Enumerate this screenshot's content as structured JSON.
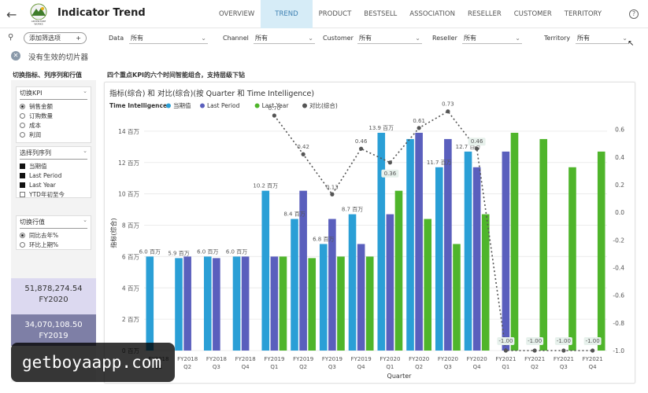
{
  "app": {
    "title": "Indicator Trend",
    "back": "←"
  },
  "nav": [
    {
      "label": "OVERVIEW",
      "active": false
    },
    {
      "label": "TREND",
      "active": true
    },
    {
      "label": "PRODUCT",
      "active": false
    },
    {
      "label": "BESTSELL",
      "active": false
    },
    {
      "label": "ASSOCIATION",
      "active": false
    },
    {
      "label": "RESELLER",
      "active": false
    },
    {
      "label": "CUSTOMER",
      "active": false
    },
    {
      "label": "TERRITORY",
      "active": false
    }
  ],
  "help": "?",
  "filters": {
    "add_label": "添加筛选项",
    "add_plus": "+",
    "items": [
      {
        "label": "Data",
        "value": "所有"
      },
      {
        "label": "Channel",
        "value": "所有"
      },
      {
        "label": "Customer",
        "value": "所有"
      },
      {
        "label": "Reseller",
        "value": "所有"
      },
      {
        "label": "Territory",
        "value": "所有"
      }
    ]
  },
  "slicer_status": "没有生效的切片器",
  "left": {
    "title": "切换指标、列序列和行值",
    "kpi_box": {
      "title": "切换KPI",
      "options": [
        "销售金额",
        "订购数量",
        "成本",
        "利润"
      ],
      "selected": 0
    },
    "series_box": {
      "title": "选择列序列",
      "options": [
        {
          "label": "当期值",
          "checked": true
        },
        {
          "label": "Last Period",
          "checked": true
        },
        {
          "label": "Last Year",
          "checked": true
        },
        {
          "label": "YTD年初至今",
          "checked": false
        }
      ]
    },
    "row_box": {
      "title": "切换行值",
      "options": [
        "同比去年%",
        "环比上期%"
      ],
      "selected": 0
    },
    "cards": [
      {
        "value": "51,878,274.54",
        "label": "FY2020"
      },
      {
        "value": "34,070,108.50",
        "label": "FY2019"
      }
    ]
  },
  "chart_heading": "四个重点KPI的六个时间智能组合，支持层级下钻",
  "chart_data": {
    "type": "bar",
    "title": "指标(综合) 和 对比(综合)(按 Quarter 和 Time Intelligence)",
    "legend_title": "Time Intelligence",
    "legend_position": "top-left",
    "xlabel": "Quarter",
    "ylabel": "指标(综合)",
    "ylim": [
      0,
      15
    ],
    "y_ticks": [
      0,
      2,
      4,
      6,
      8,
      10,
      12,
      14
    ],
    "y_tick_labels": [
      "0 百万",
      "2 百万",
      "4 百万",
      "6 百万",
      "8 百万",
      "10 百万",
      "12 百万",
      "14 百万"
    ],
    "y2lim": [
      -1.0,
      0.7
    ],
    "y2_ticks": [
      -1.0,
      -0.8,
      -0.6,
      -0.4,
      -0.2,
      0.0,
      0.2,
      0.4,
      0.6
    ],
    "y2_tick_labels": [
      "-1.0",
      "-0.8",
      "-0.6",
      "-0.4",
      "-0.2",
      "0.0",
      "0.2",
      "0.4",
      "0.6"
    ],
    "categories": [
      "FY2018 Q1",
      "FY2018 Q2",
      "FY2018 Q3",
      "FY2018 Q4",
      "FY2019 Q1",
      "FY2019 Q2",
      "FY2019 Q3",
      "FY2019 Q4",
      "FY2020 Q1",
      "FY2020 Q2",
      "FY2020 Q3",
      "FY2020 Q4",
      "FY2021 Q1",
      "FY2021 Q2",
      "FY2021 Q3",
      "FY2021 Q4"
    ],
    "series": [
      {
        "name": "当期值",
        "color": "#2a9fd6",
        "values": [
          6.0,
          5.9,
          6.0,
          6.0,
          10.2,
          8.4,
          6.8,
          8.7,
          13.9,
          13.5,
          11.7,
          12.7,
          null,
          null,
          null,
          null
        ]
      },
      {
        "name": "Last Period",
        "color": "#5a5fbd",
        "values": [
          null,
          6.0,
          5.9,
          6.0,
          6.0,
          10.2,
          8.4,
          6.8,
          8.7,
          13.9,
          13.5,
          11.7,
          12.7,
          null,
          null,
          null
        ]
      },
      {
        "name": "Last Year",
        "color": "#4fb52b",
        "values": [
          null,
          null,
          null,
          null,
          6.0,
          5.9,
          6.0,
          6.0,
          10.2,
          8.4,
          6.8,
          8.7,
          13.9,
          13.5,
          11.7,
          12.7
        ]
      },
      {
        "name": "对比(综合)",
        "color": "#555555",
        "type": "line",
        "axis": "secondary",
        "values": [
          null,
          null,
          null,
          null,
          0.7,
          0.42,
          0.13,
          0.46,
          0.36,
          0.61,
          0.73,
          0.46,
          -1.0,
          -1.0,
          -1.0,
          -1.0
        ]
      }
    ],
    "bar_labels": {
      "indices": [
        0,
        1,
        2,
        3,
        4,
        5,
        6,
        7,
        8,
        10,
        11
      ],
      "texts": [
        "6.0 百万",
        "5.9 百万",
        "6.0 百万",
        "6.0 百万",
        "10.2 百万",
        "8.4 百万",
        "6.8 百万",
        "8.7 百万",
        "13.9 百万",
        "11.7 百万",
        "12.7 百万"
      ]
    },
    "line_labels": [
      "",
      "",
      "",
      "",
      "0.70",
      "0.42",
      "0.13",
      "0.46",
      "0.36",
      "0.61",
      "0.73",
      "0.46",
      "-1.00",
      "-1.00",
      "-1.00",
      "-1.00"
    ]
  },
  "watermark": "getboyaapp.com"
}
